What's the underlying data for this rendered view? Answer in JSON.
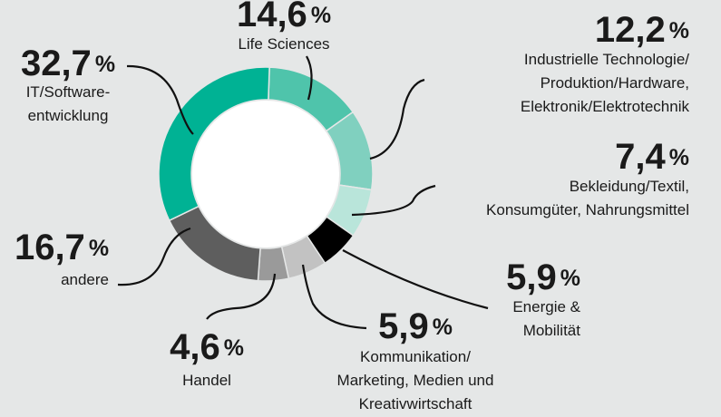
{
  "chart_data": {
    "type": "donut",
    "categories": [
      "Life Sciences",
      "Industrielle Technologie/\nProduktion/Hardware,\nElektronik/Elektrotechnik",
      "Bekleidung/Textil,\nKonsumgüter, Nahrungsmittel",
      "Energie &\nMobilität",
      "Kommunikation/\nMarketing, Medien und\nKreativwirtschaft",
      "Handel",
      "andere",
      "IT/Software-\nentwicklung"
    ],
    "values": [
      14.6,
      12.2,
      7.4,
      5.9,
      5.9,
      4.6,
      16.7,
      32.7
    ],
    "value_labels": [
      "14,6",
      "12,2",
      "7,4",
      "5,9",
      "5,9",
      "4,6",
      "16,7",
      "32,7"
    ],
    "unit": "%",
    "colors": [
      "#4fc4ab",
      "#80d0bf",
      "#b9e5da",
      "#000000",
      "#c2c2c2",
      "#9a9a9a",
      "#5e5e5e",
      "#00b294"
    ]
  }
}
